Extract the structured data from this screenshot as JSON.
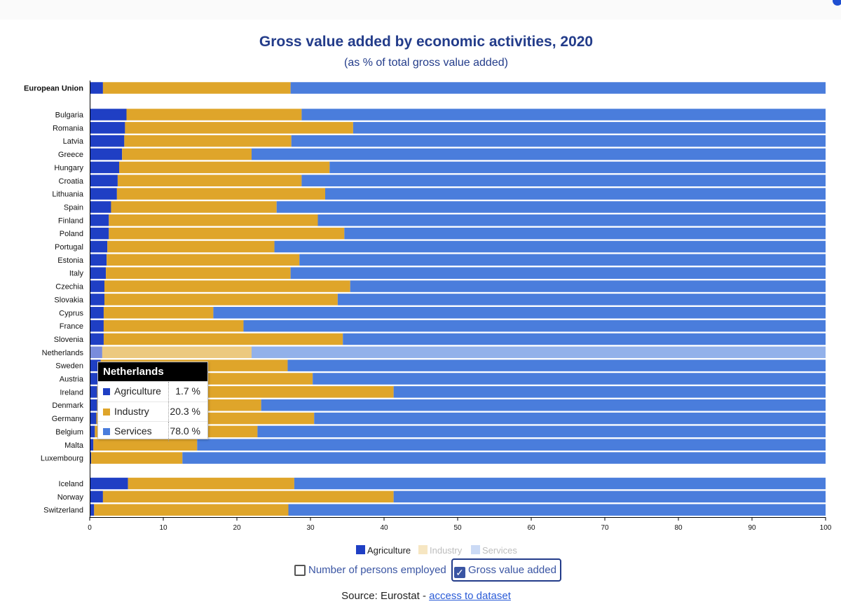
{
  "colors": {
    "agriculture": "#1f3fc4",
    "industry": "#dfa52a",
    "services": "#4a7ddc",
    "text": "#233c8a"
  },
  "chart_data": {
    "type": "bar",
    "orientation": "horizontal-stacked",
    "title": "Gross value added by economic activities, 2020",
    "subtitle": "(as % of total gross value added)",
    "xlim": [
      0,
      100
    ],
    "xticks": [
      0,
      10,
      20,
      30,
      40,
      50,
      60,
      70,
      80,
      90,
      100
    ],
    "series": [
      {
        "name": "Agriculture",
        "key": "agriculture"
      },
      {
        "name": "Industry",
        "key": "industry"
      },
      {
        "name": "Services",
        "key": "services"
      }
    ],
    "groups": [
      {
        "rows": [
          {
            "label": "European Union",
            "bold": true,
            "agriculture": 1.8,
            "industry": 25.5,
            "services": 72.7
          }
        ]
      },
      {
        "rows": [
          {
            "label": "Bulgaria",
            "agriculture": 5.0,
            "industry": 23.8,
            "services": 71.2
          },
          {
            "label": "Romania",
            "agriculture": 4.8,
            "industry": 31.0,
            "services": 64.2
          },
          {
            "label": "Latvia",
            "agriculture": 4.7,
            "industry": 22.7,
            "services": 72.6
          },
          {
            "label": "Greece",
            "agriculture": 4.4,
            "industry": 17.6,
            "services": 78.0
          },
          {
            "label": "Hungary",
            "agriculture": 4.0,
            "industry": 28.6,
            "services": 67.4
          },
          {
            "label": "Croatia",
            "agriculture": 3.8,
            "industry": 25.0,
            "services": 71.2
          },
          {
            "label": "Lithuania",
            "agriculture": 3.7,
            "industry": 28.3,
            "services": 68.0
          },
          {
            "label": "Spain",
            "agriculture": 2.9,
            "industry": 22.5,
            "services": 74.6
          },
          {
            "label": "Finland",
            "agriculture": 2.6,
            "industry": 28.4,
            "services": 69.0
          },
          {
            "label": "Poland",
            "agriculture": 2.6,
            "industry": 32.0,
            "services": 65.4
          },
          {
            "label": "Portugal",
            "agriculture": 2.4,
            "industry": 22.7,
            "services": 74.9
          },
          {
            "label": "Estonia",
            "agriculture": 2.3,
            "industry": 26.2,
            "services": 71.5
          },
          {
            "label": "Italy",
            "agriculture": 2.2,
            "industry": 25.1,
            "services": 72.7
          },
          {
            "label": "Czechia",
            "agriculture": 2.0,
            "industry": 33.4,
            "services": 64.6
          },
          {
            "label": "Slovakia",
            "agriculture": 2.0,
            "industry": 31.7,
            "services": 66.3
          },
          {
            "label": "Cyprus",
            "agriculture": 1.9,
            "industry": 14.9,
            "services": 83.2
          },
          {
            "label": "France",
            "agriculture": 1.9,
            "industry": 19.0,
            "services": 79.1
          },
          {
            "label": "Slovenia",
            "agriculture": 1.9,
            "industry": 32.5,
            "services": 65.6
          },
          {
            "label": "Netherlands",
            "agriculture": 1.7,
            "industry": 20.3,
            "services": 78.0,
            "highlight": true
          },
          {
            "label": "Sweden",
            "agriculture": 1.5,
            "industry": 25.4,
            "services": 73.1
          },
          {
            "label": "Austria",
            "agriculture": 1.2,
            "industry": 29.1,
            "services": 69.7
          },
          {
            "label": "Ireland",
            "agriculture": 1.0,
            "industry": 40.3,
            "services": 58.7
          },
          {
            "label": "Denmark",
            "agriculture": 1.0,
            "industry": 22.3,
            "services": 76.7
          },
          {
            "label": "Germany",
            "agriculture": 0.9,
            "industry": 29.6,
            "services": 69.5
          },
          {
            "label": "Belgium",
            "agriculture": 0.7,
            "industry": 22.1,
            "services": 77.2
          },
          {
            "label": "Malta",
            "agriculture": 0.5,
            "industry": 14.1,
            "services": 85.4
          },
          {
            "label": "Luxembourg",
            "agriculture": 0.2,
            "industry": 12.4,
            "services": 87.4
          }
        ]
      },
      {
        "rows": [
          {
            "label": "Iceland",
            "agriculture": 5.2,
            "industry": 22.6,
            "services": 72.2
          },
          {
            "label": "Norway",
            "agriculture": 1.8,
            "industry": 39.5,
            "services": 58.7
          },
          {
            "label": "Switzerland",
            "agriculture": 0.6,
            "industry": 26.4,
            "services": 73.0
          }
        ]
      }
    ]
  },
  "tooltip": {
    "title": "Netherlands",
    "rows": [
      {
        "name": "Agriculture",
        "value": "1.7 %"
      },
      {
        "name": "Industry",
        "value": "20.3 %"
      },
      {
        "name": "Services",
        "value": "78.0 %"
      }
    ]
  },
  "legend": {
    "items": [
      {
        "name": "Agriculture",
        "active": true
      },
      {
        "name": "Industry",
        "active": false
      },
      {
        "name": "Services",
        "active": false
      }
    ]
  },
  "controls": {
    "persons_employed": {
      "label": "Number of persons employed",
      "checked": false
    },
    "gross_value_added": {
      "label": "Gross value added",
      "checked": true
    }
  },
  "source": {
    "prefix": "Source: Eurostat - ",
    "link_text": "access to dataset"
  }
}
